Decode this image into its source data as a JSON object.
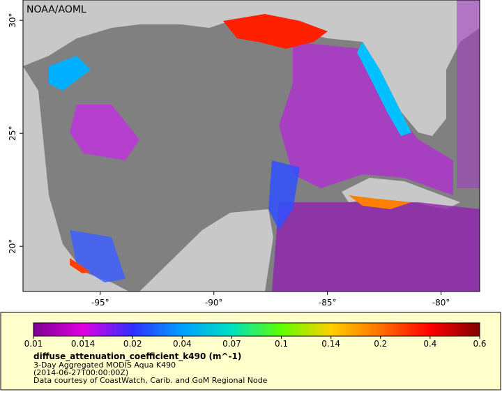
{
  "map": {
    "credit": "NOAA/AOML",
    "xticks": [
      {
        "value": -95,
        "label": "-95°"
      },
      {
        "value": -90,
        "label": "-90°"
      },
      {
        "value": -85,
        "label": "-85°"
      },
      {
        "value": -80,
        "label": "-80°"
      }
    ],
    "yticks": [
      {
        "value": 30,
        "label": "30°"
      },
      {
        "value": 25,
        "label": "25°"
      },
      {
        "value": 20,
        "label": "20°"
      }
    ],
    "xlim": [
      -98.4,
      -78.3
    ],
    "ylim": [
      18.0,
      30.9
    ]
  },
  "colorbar": {
    "ticks": [
      0.01,
      0.014,
      0.02,
      0.04,
      0.07,
      0.1,
      0.14,
      0.2,
      0.4,
      0.6
    ],
    "colors": [
      "#7a0090",
      "#e000e0",
      "#3030ff",
      "#00a0ff",
      "#00e0c0",
      "#60ff00",
      "#ffd000",
      "#ff7000",
      "#ff0000",
      "#800000"
    ]
  },
  "legend": {
    "variable": "diffuse_attenuation_coefficient_k490 (m^-1)",
    "product": "3-Day Aggregated MODIS Aqua K490",
    "time": "(2014-06-27T00:00:00Z)",
    "source": "Data courtesy of CoastWatch, Carib. and GoM Regional Node"
  }
}
